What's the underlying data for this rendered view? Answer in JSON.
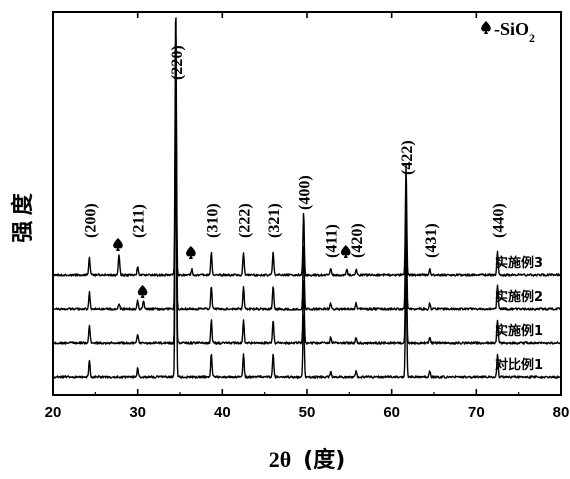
{
  "chart_data": {
    "type": "line",
    "xlabel": "2θ",
    "xlabel_unit": "(度)",
    "ylabel": "强 度",
    "xlim": [
      20,
      80
    ],
    "xticks": [
      20,
      30,
      40,
      50,
      60,
      70,
      80
    ],
    "legend": {
      "symbol": "spade",
      "text": "-SiO",
      "subscript": "2"
    },
    "peaks": [
      {
        "label": "(200)",
        "x": 24.3
      },
      {
        "label": "(211)",
        "x": 30.0
      },
      {
        "label": "(220)",
        "x": 34.5
      },
      {
        "label": "(310)",
        "x": 38.7
      },
      {
        "label": "(222)",
        "x": 42.5
      },
      {
        "label": "(321)",
        "x": 46.0
      },
      {
        "label": "(400)",
        "x": 49.6
      },
      {
        "label": "(411)",
        "x": 52.8
      },
      {
        "label": "(420)",
        "x": 55.8
      },
      {
        "label": "(422)",
        "x": 61.7
      },
      {
        "label": "(431)",
        "x": 64.5
      },
      {
        "label": "(440)",
        "x": 72.5
      }
    ],
    "sio2_markers": [
      27.8,
      30.7,
      36.4,
      54.7
    ],
    "series": [
      {
        "name": "实施例3",
        "baseline": 0.75,
        "intensities": [
          0.06,
          0.03,
          0.95,
          0.08,
          0.08,
          0.08,
          0.22,
          0.02,
          0.02,
          0.38,
          0.02,
          0.08
        ],
        "sio2": [
          0.07,
          0,
          0.02,
          0.02
        ]
      },
      {
        "name": "实施例2",
        "baseline": 0.5,
        "intensities": [
          0.06,
          0.03,
          1.0,
          0.08,
          0.08,
          0.08,
          0.22,
          0.02,
          0.02,
          0.38,
          0.02,
          0.08
        ],
        "sio2": [
          0.02,
          0.03,
          0,
          0
        ]
      },
      {
        "name": "实施例1",
        "baseline": 0.25,
        "intensities": [
          0.06,
          0.03,
          1.0,
          0.08,
          0.08,
          0.08,
          0.22,
          0.02,
          0.02,
          0.38,
          0.02,
          0.08
        ],
        "sio2": [
          0,
          0,
          0,
          0
        ]
      },
      {
        "name": "对比例1",
        "baseline": 0.0,
        "intensities": [
          0.06,
          0.03,
          1.0,
          0.08,
          0.08,
          0.08,
          0.22,
          0.02,
          0.02,
          0.38,
          0.02,
          0.08
        ],
        "sio2": [
          0,
          0,
          0,
          0
        ]
      }
    ]
  }
}
